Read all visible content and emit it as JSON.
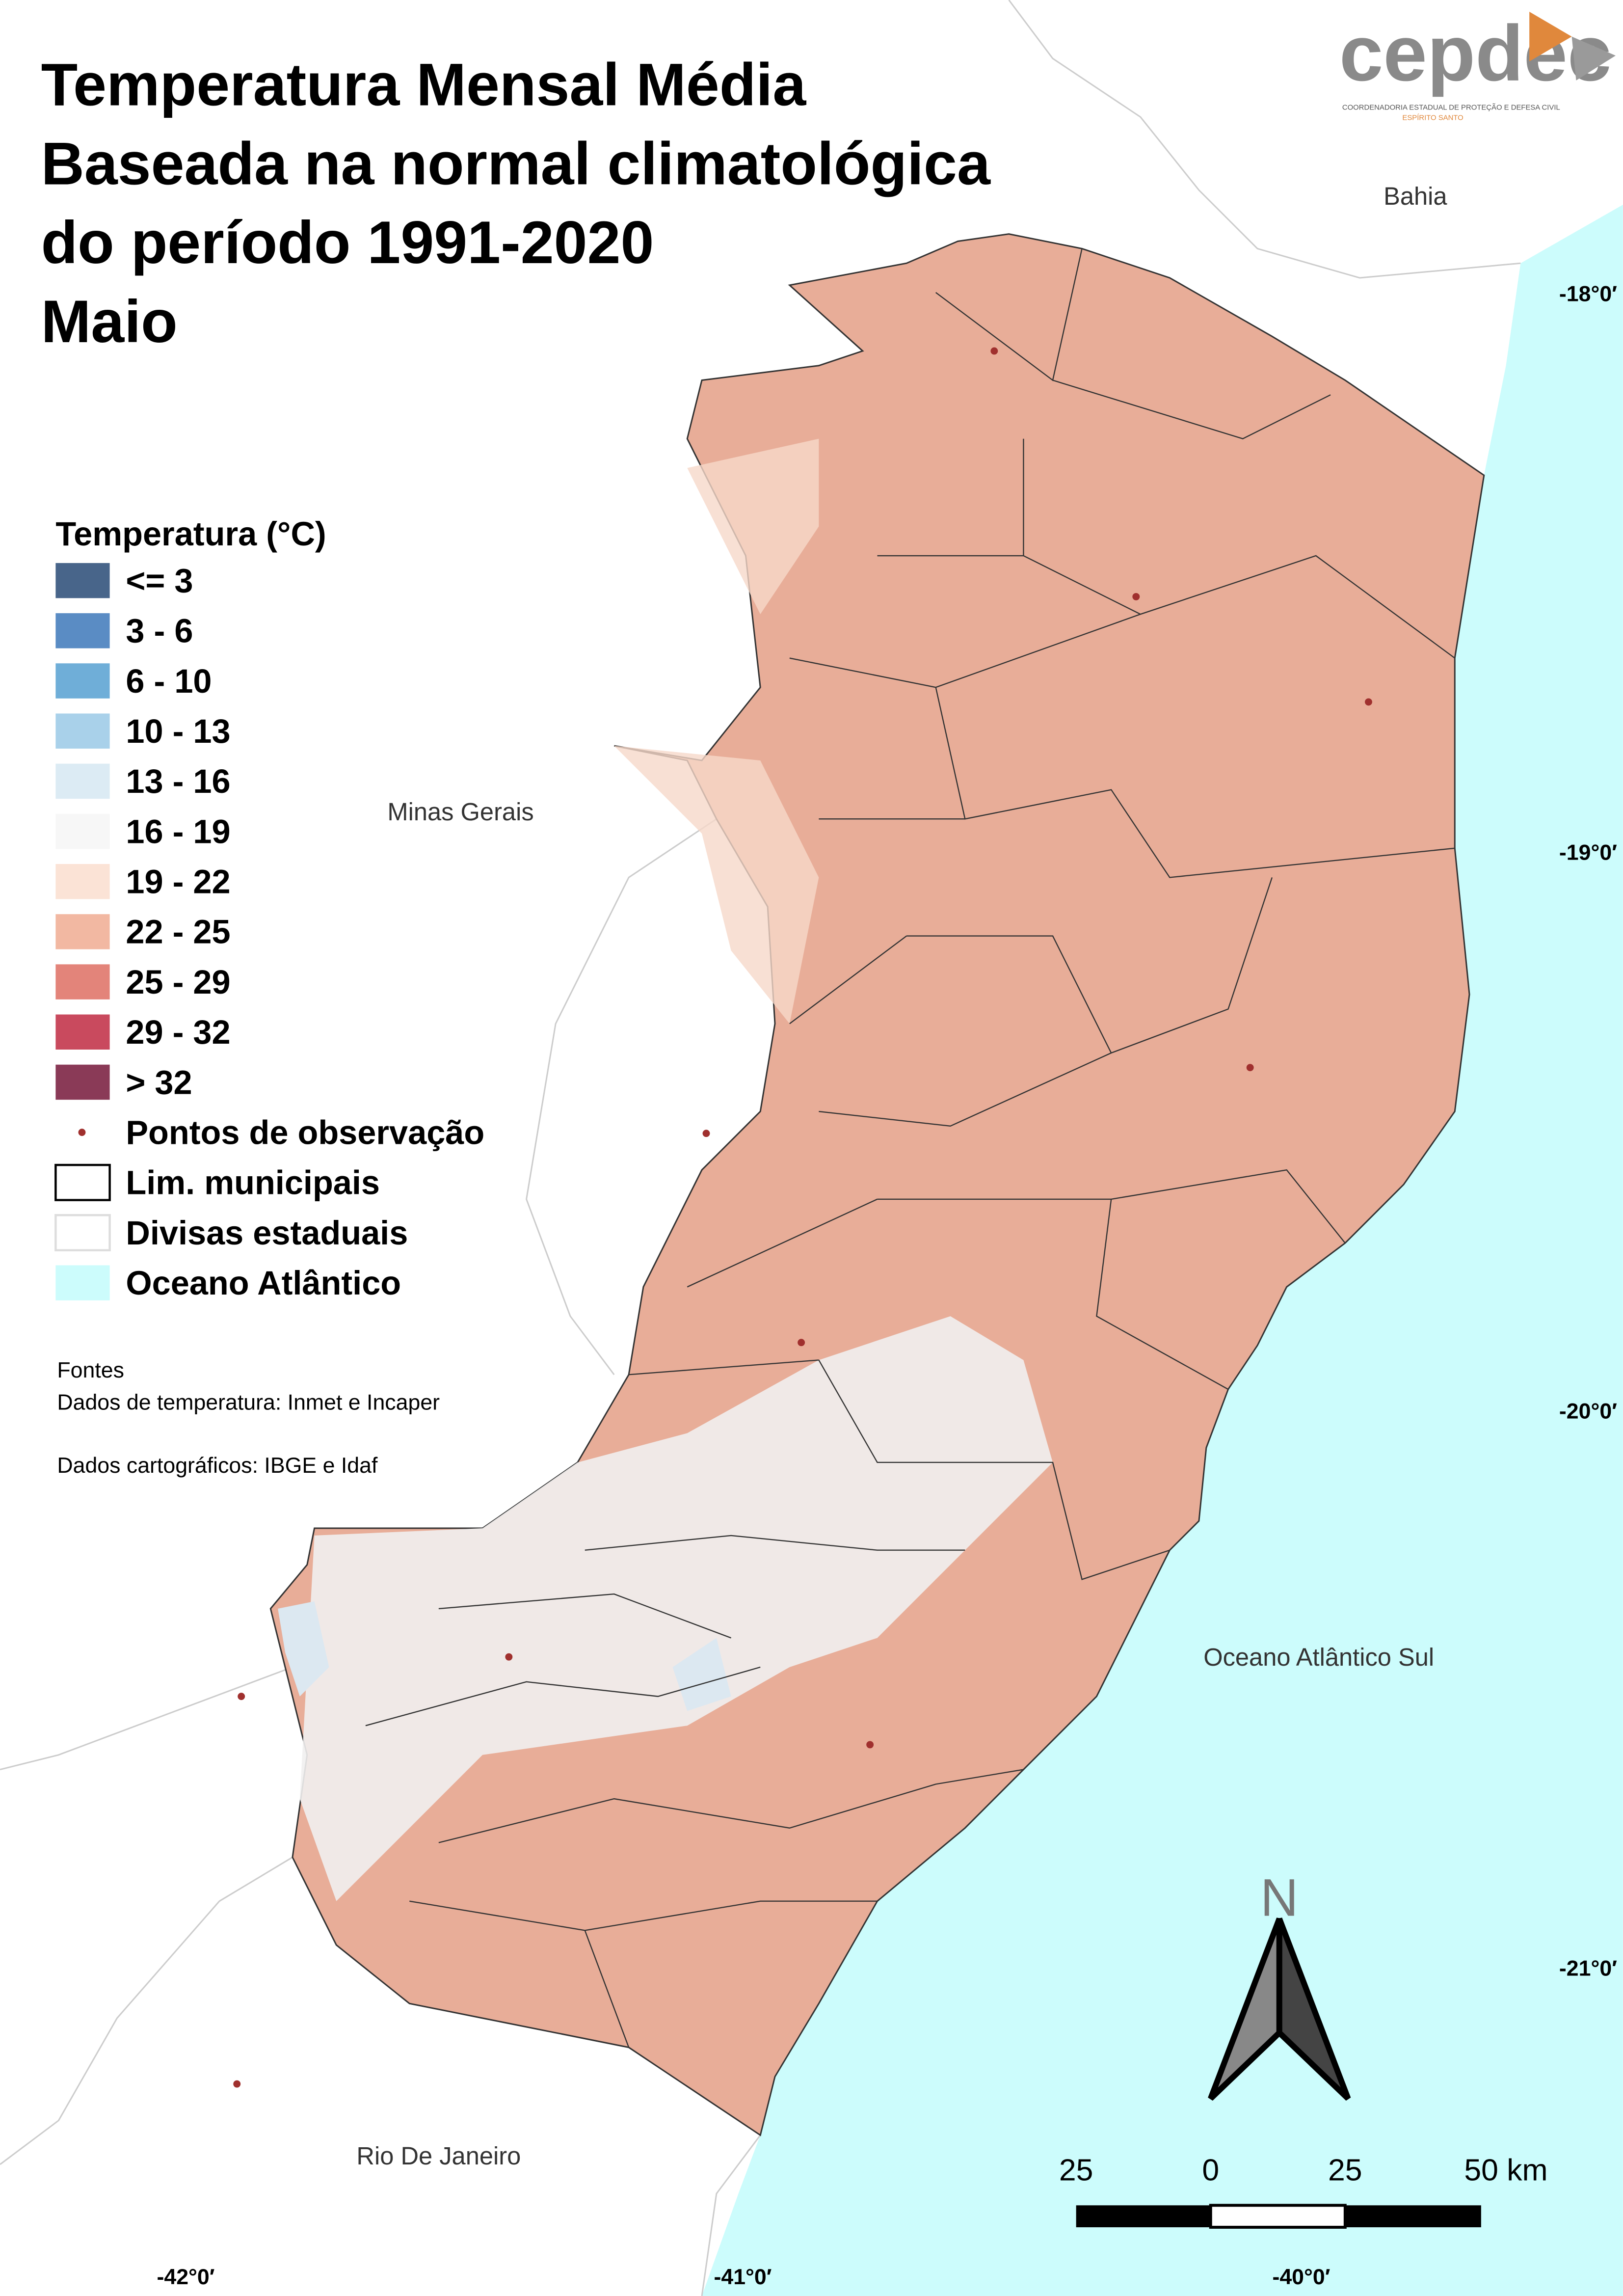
{
  "title": {
    "lines": [
      "Temperatura Mensal Média",
      "Baseada na normal climatológica",
      "do período 1991-2020",
      "Maio"
    ]
  },
  "logo": {
    "name": "cepdec",
    "subtitle": "COORDENADORIA ESTADUAL DE PROTEÇÃO E DEFESA CIVIL",
    "state": "ESPÍRITO SANTO"
  },
  "legend": {
    "title": "Temperatura (°C)",
    "items": [
      {
        "label": "<= 3",
        "color": "#48658a"
      },
      {
        "label": "3 - 6",
        "color": "#5a8cc4"
      },
      {
        "label": "6 - 10",
        "color": "#6faed8"
      },
      {
        "label": "10 - 13",
        "color": "#a9d1ea"
      },
      {
        "label": "13 - 16",
        "color": "#dcebf4"
      },
      {
        "label": "16 - 19",
        "color": "#f7f7f7"
      },
      {
        "label": "19 - 22",
        "color": "#fbe3d6"
      },
      {
        "label": "22 - 25",
        "color": "#f2b8a2"
      },
      {
        "label": "25 - 29",
        "color": "#e3847a"
      },
      {
        "label": "29 - 32",
        "color": "#c94a5e"
      },
      {
        "label": "> 32",
        "color": "#8a3a57"
      }
    ],
    "symbols": [
      "Pontos de observação",
      "Lim. municipais",
      "Divisas estaduais",
      "Oceano Atlântico"
    ]
  },
  "sources": {
    "heading": "Fontes",
    "lines": [
      "Dados de temperatura: Inmet e Incaper",
      "Dados cartográficos: IBGE e Idaf"
    ]
  },
  "places": [
    "Bahia",
    "Minas Gerais",
    "Oceano Atlântico Sul",
    "Rio De Janeiro"
  ],
  "lat_labels": [
    "-18°0′",
    "-19°0′",
    "-20°0′",
    "-21°0′"
  ],
  "lon_labels": [
    "-42°0′",
    "-41°0′",
    "-40°0′"
  ],
  "north": "N",
  "scale_labels": [
    "25",
    "0",
    "25",
    "50 km"
  ]
}
